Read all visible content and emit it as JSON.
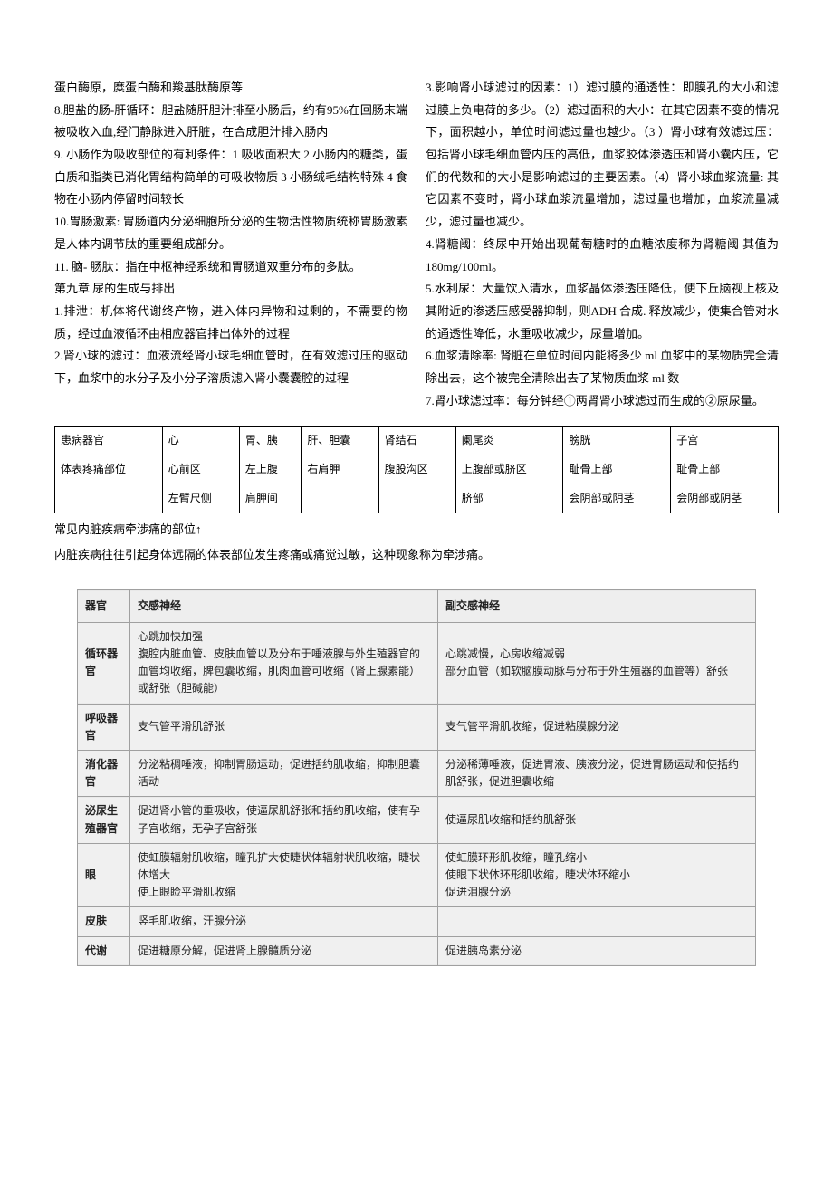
{
  "leftCol": {
    "p1": "蛋白酶原，糜蛋白酶和羧基肽酶原等",
    "p2": "8.胆盐的肠-肝循环：胆盐随肝胆汁排至小肠后，约有95%在回肠末端被吸收入血,经门静脉进入肝脏，在合成胆汁排入肠内",
    "p3": "9. 小肠作为吸收部位的有利条件：1 吸收面积大 2 小肠内的糖类，蛋白质和脂类已消化胃结构简单的可吸收物质 3 小肠绒毛结构特殊 4 食物在小肠内停留时间较长",
    "p4": "10.胃肠激素: 胃肠道内分泌细胞所分泌的生物活性物质统称胃肠激素是人体内调节肽的重要组成部分。",
    "p5": "11. 脑- 肠肽：指在中枢神经系统和胃肠道双重分布的多肽。",
    "p6": "第九章  尿的生成与排出",
    "p7": "1.排泄：机体将代谢终产物，进入体内异物和过剩的，不需要的物质，经过血液循环由相应器官排出体外的过程",
    "p8": "2.肾小球的滤过：血液流经肾小球毛细血管时，在有效滤过压的驱动下，血浆中的水分子及小分子溶质滤入肾小囊囊腔的过程"
  },
  "rightCol": {
    "p1": "3.影响肾小球滤过的因素：1）滤过膜的通透性：即膜孔的大小和滤过膜上负电荷的多少。（2）滤过面积的大小：在其它因素不变的情况下，面积越小，单位时间滤过量也越少。（3 ）肾小球有效滤过压：包括肾小球毛细血管内压的高低，血浆胶体渗透压和肾小囊内压，它们的代数和的大小是影响滤过的主要因素。（4）肾小球血浆流量: 其它因素不变时，肾小球血浆流量增加，滤过量也增加，血浆流量减少，滤过量也减少。",
    "p2": "4.肾糖阈：终尿中开始出现葡萄糖时的血糖浓度称为肾糖阈 其值为 180mg/100ml。",
    "p3": "5.水利尿：大量饮入清水，血浆晶体渗透压降低，使下丘脑视上核及其附近的渗透压感受器抑制，则ADH 合成. 释放减少，使集合管对水的通透性降低，水重吸收减少，尿量增加。",
    "p4": "6.血浆清除率: 肾脏在单位时间内能将多少 ml 血浆中的某物质完全清除出去，这个被完全清除出去了某物质血浆 ml 数",
    "p5": "7.肾小球滤过率：每分钟经①两肾肾小球滤过而生成的②原尿量。"
  },
  "table1": {
    "rows": [
      [
        "患病器官",
        "心",
        "胃、胰",
        "肝、胆囊",
        "肾结石",
        "阑尾炎",
        "膀胱",
        "子宫"
      ],
      [
        "体表疼痛部位",
        "心前区",
        "左上腹",
        "右肩胛",
        "腹股沟区",
        "上腹部或脐区",
        "耻骨上部",
        "耻骨上部"
      ],
      [
        "",
        "左臂尺侧",
        "肩胛间",
        "",
        "",
        "脐部",
        "会阴部或阴茎",
        "会阴部或阴茎"
      ]
    ]
  },
  "captions": {
    "c1": "常见内脏疾病牵涉痛的部位↑",
    "c2": "内脏疾病往往引起身体远隔的体表部位发生疼痛或痛觉过敏，这种现象称为牵涉痛。"
  },
  "nerveTable": {
    "headers": [
      "器官",
      "交感神经",
      "副交感神经"
    ],
    "rows": [
      {
        "organ": "循环器官",
        "symp": "心跳加快加强\n腹腔内脏血管、皮肤血管以及分布于唾液腺与外生殖器官的血管均收缩，脾包囊收缩，肌肉血管可收缩（肾上腺素能）或舒张（胆碱能）",
        "para": "心跳减慢，心房收缩减弱\n部分血管（如软脑膜动脉与分布于外生殖器的血管等）舒张"
      },
      {
        "organ": "呼吸器官",
        "symp": "支气管平滑肌舒张",
        "para": "支气管平滑肌收缩，促进粘膜腺分泌"
      },
      {
        "organ": "消化器官",
        "symp": "分泌粘稠唾液，抑制胃肠运动，促进括约肌收缩，抑制胆囊活动",
        "para": "分泌稀薄唾液，促进胃液、胰液分泌，促进胃肠运动和使括约肌舒张，促进胆囊收缩"
      },
      {
        "organ": "泌尿生殖器官",
        "symp": "促进肾小管的重吸收，使逼尿肌舒张和括约肌收缩，使有孕子宫收缩，无孕子宫舒张",
        "para": "使逼尿肌收缩和括约肌舒张"
      },
      {
        "organ": "眼",
        "symp": "使虹膜辐射肌收缩，瞳孔扩大使睫状体辐射状肌收缩，睫状体增大\n使上眼睑平滑肌收缩",
        "para": "使虹膜环形肌收缩，瞳孔缩小\n使眼下状体环形肌收缩，睫状体环缩小\n促进泪腺分泌"
      },
      {
        "organ": "皮肤",
        "symp": "竖毛肌收缩，汗腺分泌",
        "para": ""
      },
      {
        "organ": "代谢",
        "symp": "促进糖原分解，促进肾上腺髓质分泌",
        "para": "促进胰岛素分泌"
      }
    ]
  },
  "colors": {
    "text": "#000000",
    "tableBorder": "#a0a0a0",
    "tableBg1": "#eaeaea",
    "tableBg2": "#f6f6f6"
  }
}
